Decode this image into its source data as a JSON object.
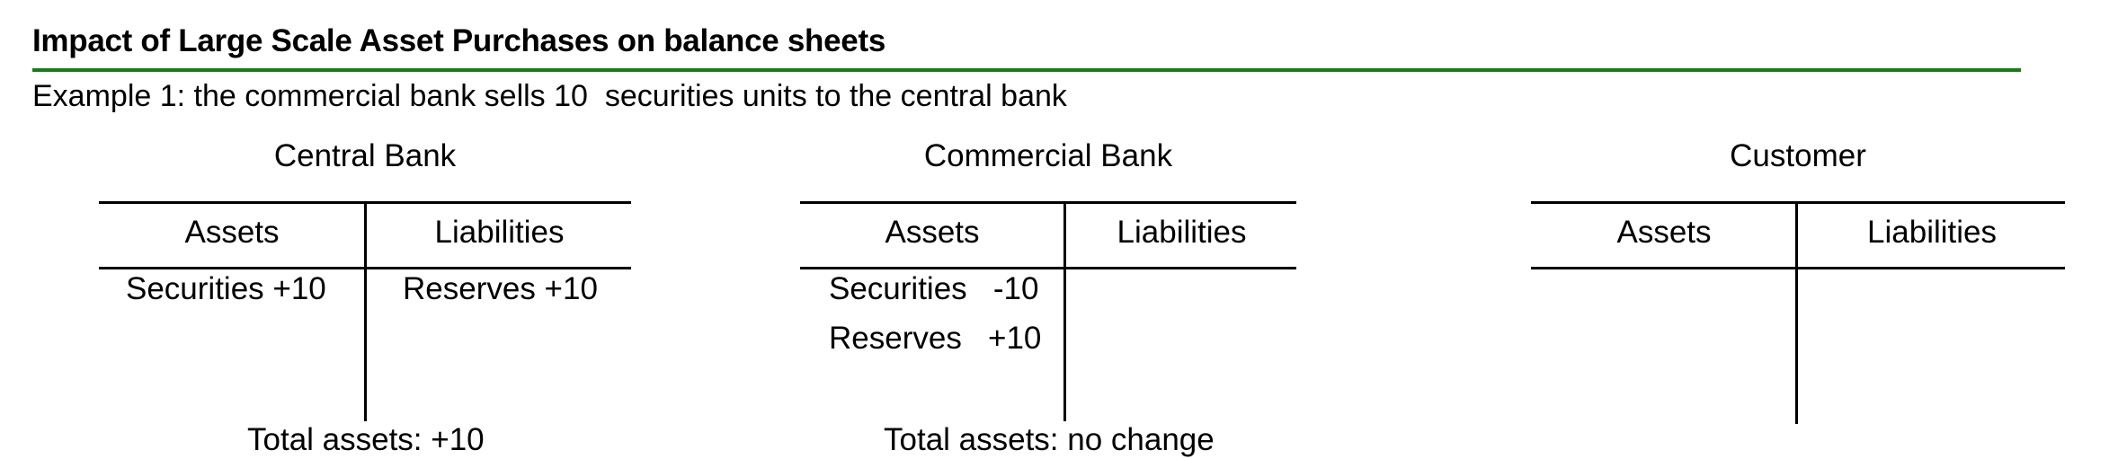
{
  "title": "Impact of Large Scale Asset Purchases on balance sheets",
  "subtitle": "Example 1: the commercial bank sells 10  securities units to the central bank",
  "accounts": [
    {
      "name": "Central Bank",
      "assets_label": "Assets",
      "liabilities_label": "Liabilities",
      "assets": [
        "Securities +10"
      ],
      "liabilities": [
        "Reserves +10"
      ],
      "total": "Total assets: +10"
    },
    {
      "name": "Commercial Bank",
      "assets_label": "Assets",
      "liabilities_label": "Liabilities",
      "assets": [
        "Securities   -10",
        "Reserves   +10"
      ],
      "liabilities": [],
      "total": "Total assets: no change"
    },
    {
      "name": "Customer",
      "assets_label": "Assets",
      "liabilities_label": "Liabilities",
      "assets": [],
      "liabilities": [],
      "total": ""
    }
  ]
}
